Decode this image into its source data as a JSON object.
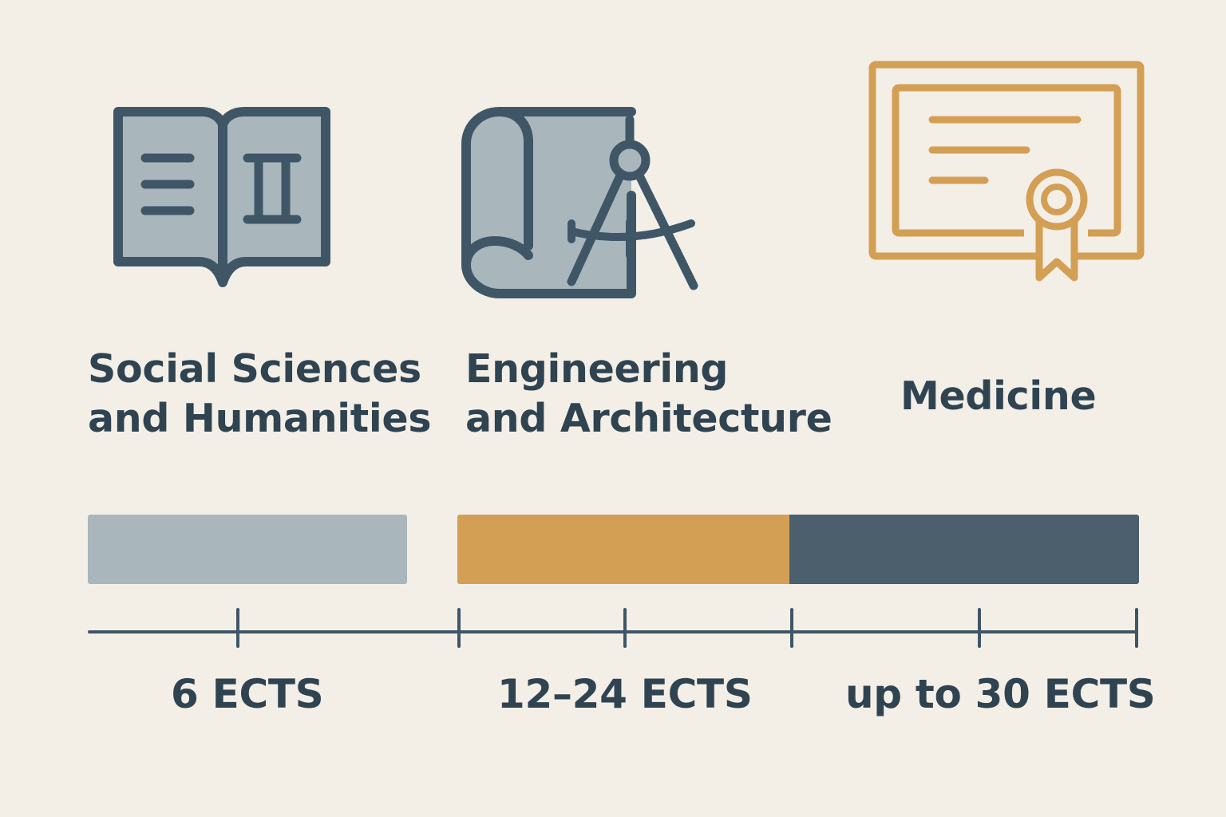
{
  "categories": [
    {
      "line1": "Social Sciences",
      "line2": "and Humanities",
      "icon": "open-book-icon",
      "range_label": "6 ECTS"
    },
    {
      "line1": "Engineering",
      "line2": "and Architecture",
      "icon": "blueprint-compass-icon",
      "range_label": "12–24 ECTS"
    },
    {
      "line1": "Medicine",
      "line2": "",
      "icon": "diploma-certificate-icon",
      "range_label": "up to 30 ECTS"
    }
  ],
  "colors": {
    "background": "#f3efe7",
    "navy": "#3f5667",
    "slate": "#a9b7bc",
    "gold": "#d39f55",
    "dark_bar": "#4b5f6d",
    "text": "#2f4351"
  }
}
